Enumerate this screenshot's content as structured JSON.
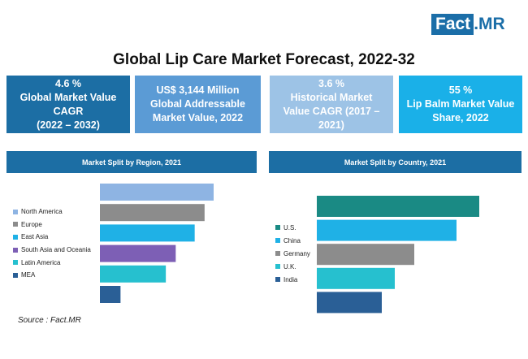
{
  "brand": {
    "fact": "Fact",
    "dot": ".",
    "mr": "MR"
  },
  "title": "Global Lip Care Market Forecast, 2022-32",
  "kpis": [
    {
      "lines": [
        "4.6 %",
        "Global Market Value",
        "CAGR",
        "(2022 – 2032)"
      ],
      "color": "#1c6ea4"
    },
    {
      "lines": [
        "US$ 3,144 Million",
        "Global Addressable",
        "Market Value, 2022"
      ],
      "color": "#5b9bd5"
    },
    {
      "lines": [
        "3.6 %",
        "Historical Market",
        "Value CAGR (2017 –",
        "2021)"
      ],
      "color": "#9dc3e6"
    },
    {
      "lines": [
        "55 %",
        "Lip Balm Market Value",
        "Share, 2022"
      ],
      "color": "#1ab0e8"
    }
  ],
  "region_chart": {
    "header": "Market Split by Region, 2021",
    "header_color": "#1c6ea4"
  },
  "country_chart": {
    "header": "Market Split by Country, 2021",
    "header_color": "#1c6ea4"
  },
  "source": "Source : Fact.MR",
  "chart_data": [
    {
      "type": "bar",
      "orientation": "horizontal",
      "title": "Market Split by Region, 2021",
      "categories": [
        "North America",
        "Europe",
        "East Asia",
        "South Asia and Oceania",
        "Latin America",
        "MEA"
      ],
      "values": [
        138,
        127,
        115,
        92,
        80,
        25
      ],
      "colors": [
        "#8eb4e3",
        "#8c8c8c",
        "#1fb1e6",
        "#7d5fb5",
        "#26c0cf",
        "#2a5f96"
      ],
      "legend_position": "left",
      "axis_labels_shown": false
    },
    {
      "type": "bar",
      "orientation": "horizontal",
      "title": "Market Split by Country, 2021",
      "categories": [
        "U.S.",
        "China",
        "Germany",
        "U.K.",
        "India"
      ],
      "values": [
        200,
        172,
        120,
        96,
        80
      ],
      "colors": [
        "#1a8a84",
        "#1fb1e6",
        "#8c8c8c",
        "#26c0cf",
        "#2a5f96"
      ],
      "legend_position": "left",
      "axis_labels_shown": false
    }
  ]
}
